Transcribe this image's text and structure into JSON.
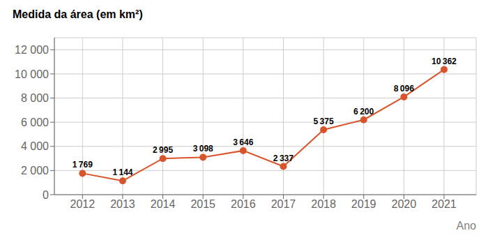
{
  "chart_data": {
    "type": "line",
    "title": "Medida da área (em km²)",
    "x_label": "Ano",
    "x": [
      2012,
      2013,
      2014,
      2015,
      2016,
      2017,
      2018,
      2019,
      2020,
      2021
    ],
    "values": [
      1769,
      1144,
      2995,
      3098,
      3646,
      2337,
      5375,
      6200,
      8096,
      10362
    ],
    "value_labels": [
      "1 769",
      "1 144",
      "2 995",
      "3 098",
      "3 646",
      "2 337",
      "5 375",
      "6 200",
      "8 096",
      "10 362"
    ],
    "color": "#d9542b",
    "marker": "circle",
    "xlim": [
      2011.3,
      2021.8
    ],
    "xticks": [
      2012,
      2013,
      2014,
      2015,
      2016,
      2017,
      2018,
      2019,
      2020,
      2021
    ],
    "ylim": [
      0,
      13000
    ],
    "yticks": [
      0,
      {
        "value": 2000,
        "label": "2 000"
      },
      {
        "value": 4000,
        "label": "4 000"
      },
      {
        "value": 6000,
        "label": "6 000"
      },
      {
        "value": 8000,
        "label": "8 000"
      },
      {
        "value": 10000,
        "label": "10 000"
      },
      {
        "value": 12000,
        "label": "12 000"
      }
    ],
    "grid": true,
    "data_labels": true
  }
}
